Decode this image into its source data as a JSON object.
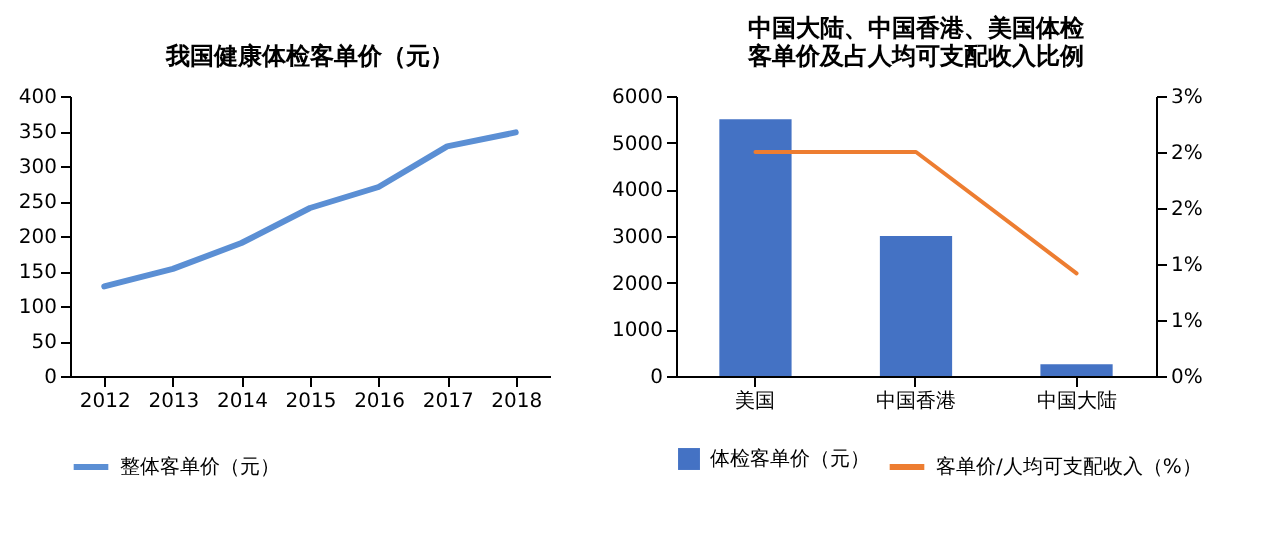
{
  "chart_data": [
    {
      "type": "line",
      "title": "我国健康体检客单价（元）",
      "categories": [
        "2012",
        "2013",
        "2014",
        "2015",
        "2016",
        "2017",
        "2018"
      ],
      "series": [
        {
          "name": "整体客单价（元）",
          "color": "#5b8fd4",
          "values": [
            128,
            153,
            190,
            240,
            270,
            328,
            348
          ]
        }
      ],
      "ylim": [
        0,
        400
      ],
      "yticks": [
        0,
        50,
        100,
        150,
        200,
        250,
        300,
        350,
        400
      ],
      "legend": "bottom"
    },
    {
      "type": "bar",
      "title": "中国大陆、中国香港、美国体检客单价及占人均可支配收入比例",
      "categories": [
        "美国",
        "中国香港",
        "中国大陆"
      ],
      "series": [
        {
          "name": "体检客单价（元）",
          "color": "#4472c4",
          "values": [
            5500,
            3000,
            250
          ]
        },
        {
          "name": "客单价/人均可支配收入（%）",
          "type": "line",
          "axis": "y2",
          "color": "#ed7d31",
          "values": [
            2.4,
            2.4,
            1.1
          ]
        }
      ],
      "ylim": [
        0,
        6000
      ],
      "yticks": [
        0,
        1000,
        2000,
        3000,
        4000,
        5000,
        6000
      ],
      "y2lim": [
        0,
        3
      ],
      "y2ticks": [
        {
          "value": 0,
          "label": "0%"
        },
        {
          "value": 0.6,
          "label": "1%"
        },
        {
          "value": 1.2,
          "label": "1%"
        },
        {
          "value": 1.8,
          "label": "2%"
        },
        {
          "value": 2.4,
          "label": "2%"
        },
        {
          "value": 3,
          "label": "3%"
        }
      ],
      "legend": "bottom"
    }
  ]
}
